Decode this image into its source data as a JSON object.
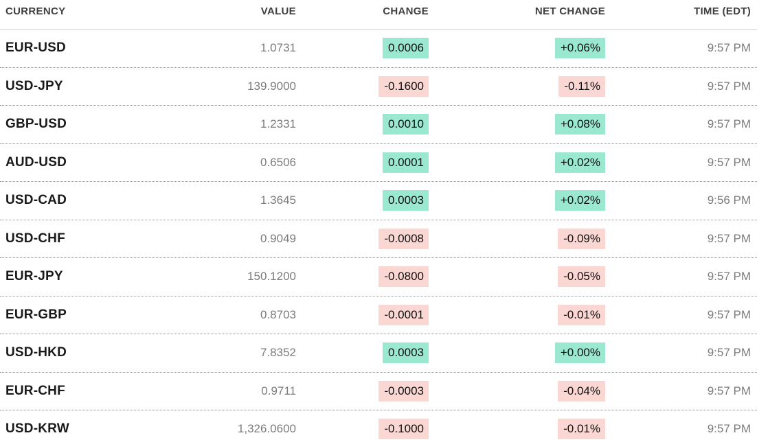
{
  "colors": {
    "positive_bg": "#99e8cf",
    "negative_bg": "#fbd7d3"
  },
  "table": {
    "headers": [
      "CURRENCY",
      "VALUE",
      "CHANGE",
      "NET CHANGE",
      "TIME (EDT)"
    ],
    "rows": [
      {
        "pair": "EUR-USD",
        "value": "1.0731",
        "change": "0.0006",
        "net_change": "+0.06%",
        "time": "9:57 PM",
        "direction": "up"
      },
      {
        "pair": "USD-JPY",
        "value": "139.9000",
        "change": "-0.1600",
        "net_change": "-0.11%",
        "time": "9:57 PM",
        "direction": "down"
      },
      {
        "pair": "GBP-USD",
        "value": "1.2331",
        "change": "0.0010",
        "net_change": "+0.08%",
        "time": "9:57 PM",
        "direction": "up"
      },
      {
        "pair": "AUD-USD",
        "value": "0.6506",
        "change": "0.0001",
        "net_change": "+0.02%",
        "time": "9:57 PM",
        "direction": "up"
      },
      {
        "pair": "USD-CAD",
        "value": "1.3645",
        "change": "0.0003",
        "net_change": "+0.02%",
        "time": "9:56 PM",
        "direction": "up"
      },
      {
        "pair": "USD-CHF",
        "value": "0.9049",
        "change": "-0.0008",
        "net_change": "-0.09%",
        "time": "9:57 PM",
        "direction": "down"
      },
      {
        "pair": "EUR-JPY",
        "value": "150.1200",
        "change": "-0.0800",
        "net_change": "-0.05%",
        "time": "9:57 PM",
        "direction": "down"
      },
      {
        "pair": "EUR-GBP",
        "value": "0.8703",
        "change": "-0.0001",
        "net_change": "-0.01%",
        "time": "9:57 PM",
        "direction": "down"
      },
      {
        "pair": "USD-HKD",
        "value": "7.8352",
        "change": "0.0003",
        "net_change": "+0.00%",
        "time": "9:57 PM",
        "direction": "up"
      },
      {
        "pair": "EUR-CHF",
        "value": "0.9711",
        "change": "-0.0003",
        "net_change": "-0.04%",
        "time": "9:57 PM",
        "direction": "down"
      },
      {
        "pair": "USD-KRW",
        "value": "1,326.0600",
        "change": "-0.1000",
        "net_change": "-0.01%",
        "time": "9:57 PM",
        "direction": "down"
      }
    ]
  }
}
